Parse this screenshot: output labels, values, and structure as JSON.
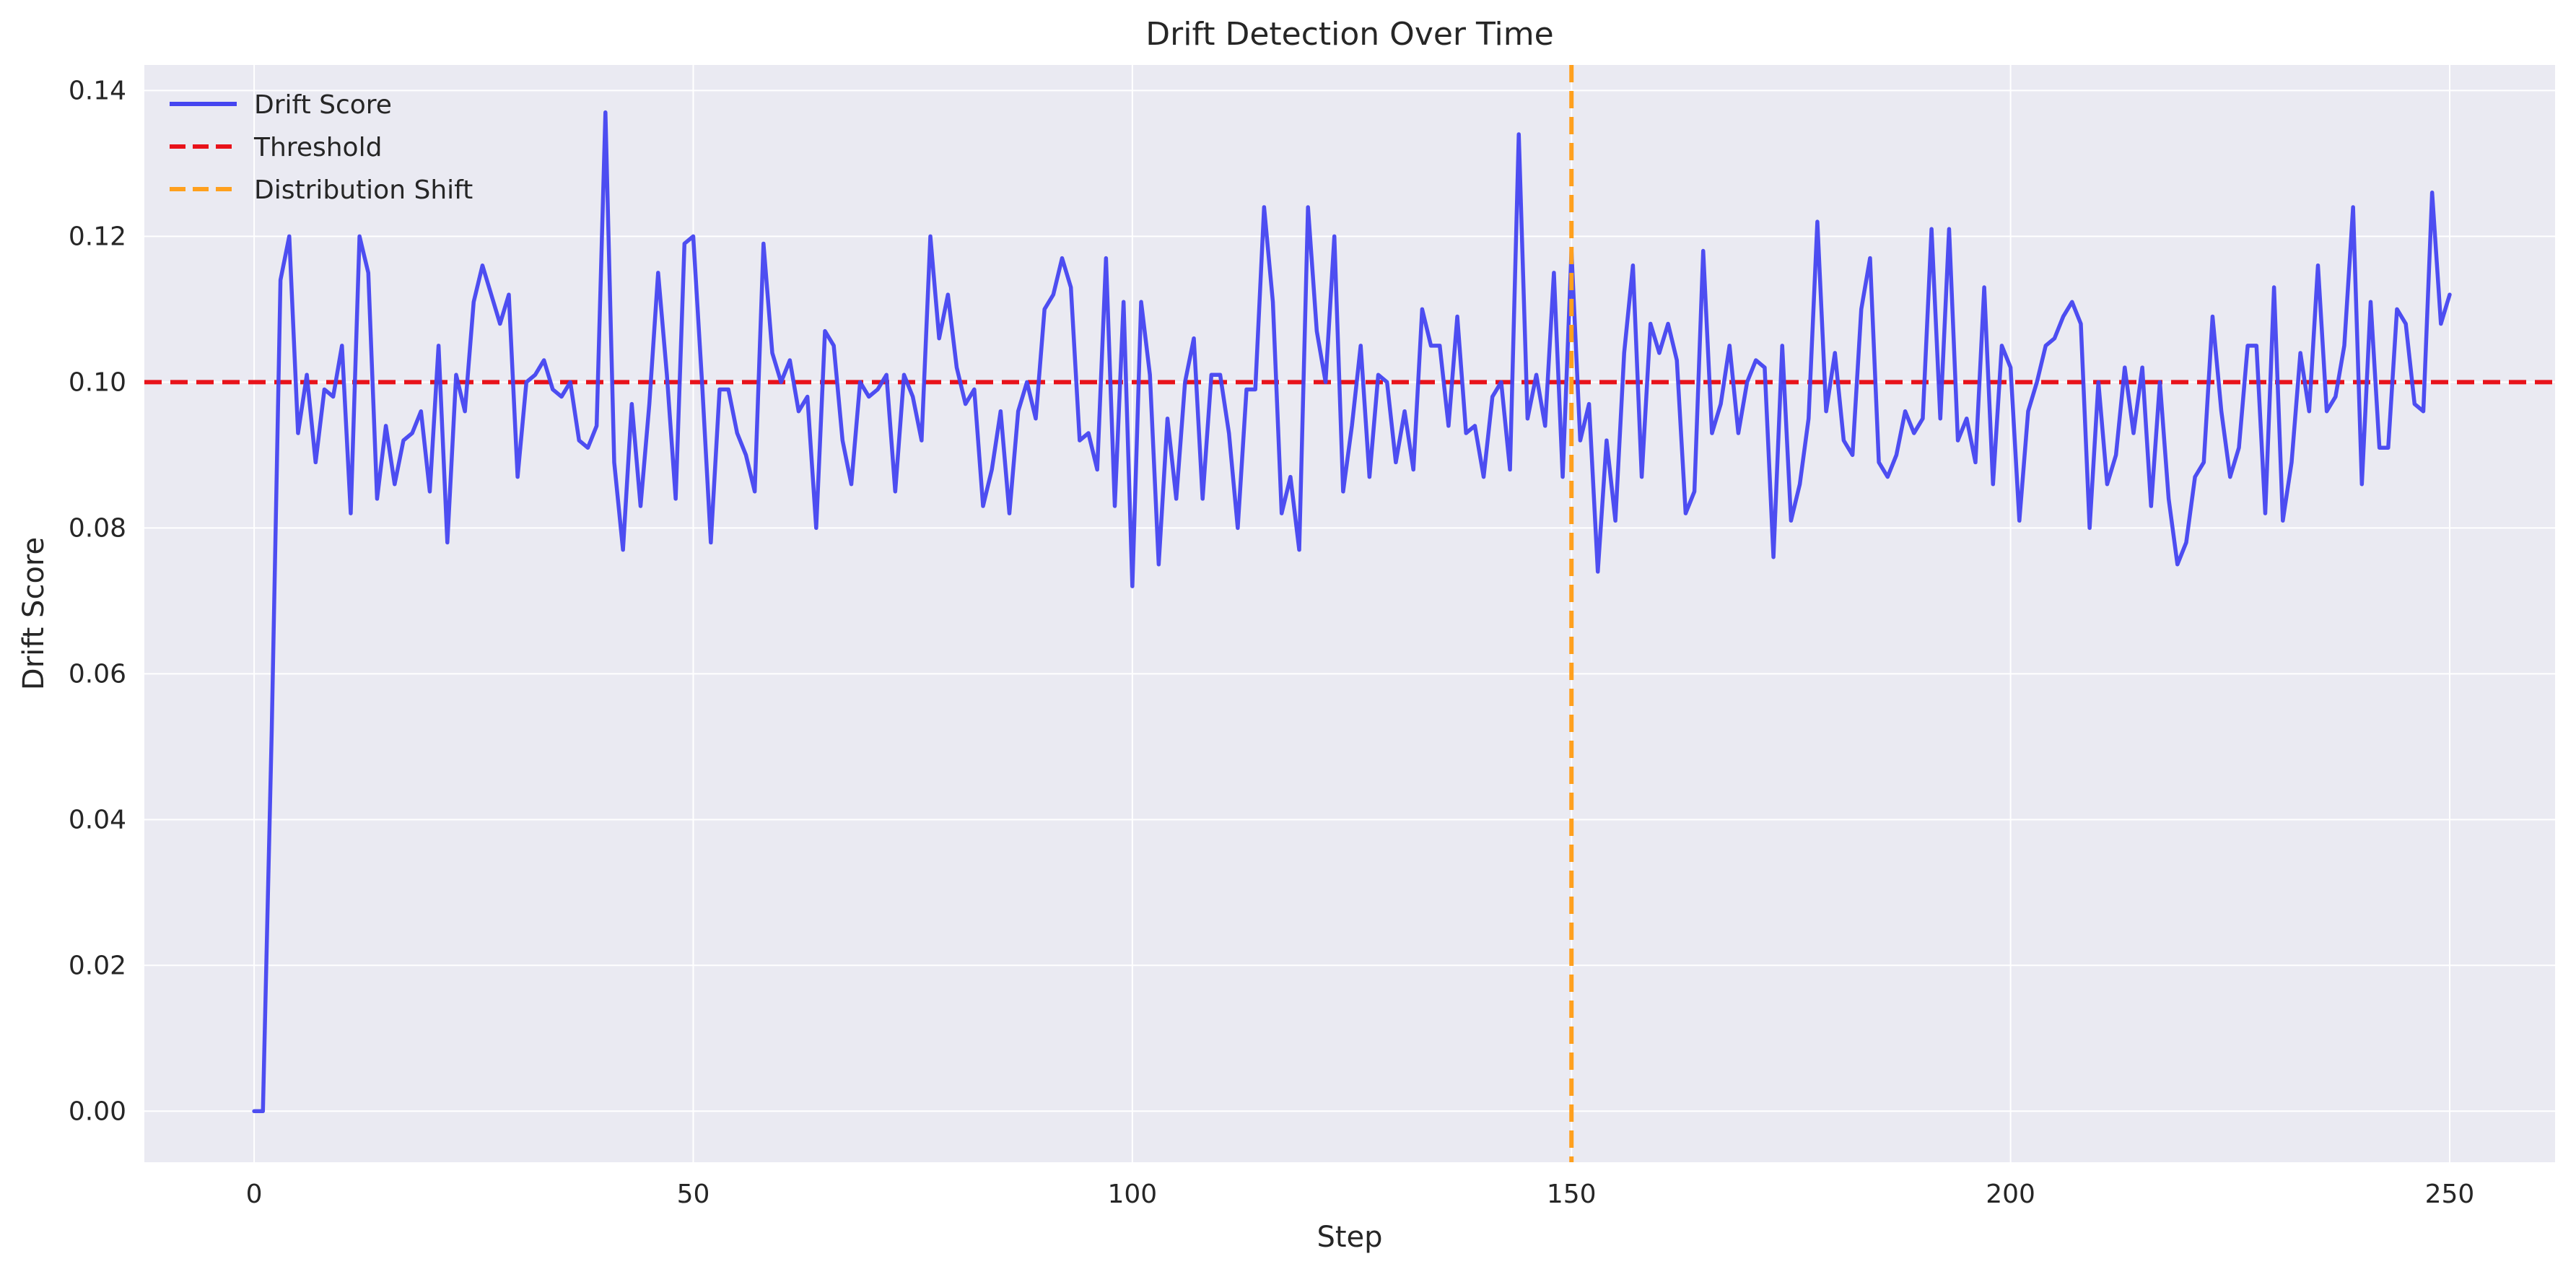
{
  "chart_data": {
    "type": "line",
    "title": "Drift Detection Over Time",
    "xlabel": "Step",
    "ylabel": "Drift Score",
    "xlim": [
      -12.5,
      262
    ],
    "ylim": [
      -0.007,
      0.1435
    ],
    "xticks": [
      0,
      50,
      100,
      150,
      200,
      250
    ],
    "yticks": [
      0.0,
      0.02,
      0.04,
      0.06,
      0.08,
      0.1,
      0.12,
      0.14
    ],
    "ytick_labels": [
      "0.00",
      "0.02",
      "0.04",
      "0.06",
      "0.08",
      "0.10",
      "0.12",
      "0.14"
    ],
    "grid": true,
    "legend_position": "top-left",
    "series": [
      {
        "name": "Drift Score",
        "color": "#4545f0",
        "style": "solid",
        "x_start": 0,
        "x_step": 1,
        "values": [
          0.0,
          0.0,
          0.052,
          0.114,
          0.12,
          0.093,
          0.101,
          0.089,
          0.099,
          0.098,
          0.105,
          0.082,
          0.12,
          0.115,
          0.084,
          0.094,
          0.086,
          0.092,
          0.093,
          0.096,
          0.085,
          0.105,
          0.078,
          0.101,
          0.096,
          0.111,
          0.116,
          0.112,
          0.108,
          0.112,
          0.087,
          0.1,
          0.101,
          0.103,
          0.099,
          0.098,
          0.1,
          0.092,
          0.091,
          0.094,
          0.137,
          0.089,
          0.077,
          0.097,
          0.083,
          0.097,
          0.115,
          0.101,
          0.084,
          0.119,
          0.12,
          0.1,
          0.078,
          0.099,
          0.099,
          0.093,
          0.09,
          0.085,
          0.119,
          0.104,
          0.1,
          0.103,
          0.096,
          0.098,
          0.08,
          0.107,
          0.105,
          0.092,
          0.086,
          0.1,
          0.098,
          0.099,
          0.101,
          0.085,
          0.101,
          0.098,
          0.092,
          0.12,
          0.106,
          0.112,
          0.102,
          0.097,
          0.099,
          0.083,
          0.088,
          0.096,
          0.082,
          0.096,
          0.1,
          0.095,
          0.11,
          0.112,
          0.117,
          0.113,
          0.092,
          0.093,
          0.088,
          0.117,
          0.083,
          0.111,
          0.072,
          0.111,
          0.101,
          0.075,
          0.095,
          0.084,
          0.1,
          0.106,
          0.084,
          0.101,
          0.101,
          0.093,
          0.08,
          0.099,
          0.099,
          0.124,
          0.111,
          0.082,
          0.087,
          0.077,
          0.124,
          0.107,
          0.1,
          0.12,
          0.085,
          0.094,
          0.105,
          0.087,
          0.101,
          0.1,
          0.089,
          0.096,
          0.088,
          0.11,
          0.105,
          0.105,
          0.094,
          0.109,
          0.093,
          0.094,
          0.087,
          0.098,
          0.1,
          0.088,
          0.134,
          0.095,
          0.101,
          0.094,
          0.115,
          0.087,
          0.118,
          0.092,
          0.097,
          0.074,
          0.092,
          0.081,
          0.104,
          0.116,
          0.087,
          0.108,
          0.104,
          0.108,
          0.103,
          0.082,
          0.085,
          0.118,
          0.093,
          0.097,
          0.105,
          0.093,
          0.1,
          0.103,
          0.102,
          0.076,
          0.105,
          0.081,
          0.086,
          0.095,
          0.122,
          0.096,
          0.104,
          0.092,
          0.09,
          0.11,
          0.117,
          0.089,
          0.087,
          0.09,
          0.096,
          0.093,
          0.095,
          0.121,
          0.095,
          0.121,
          0.092,
          0.095,
          0.089,
          0.113,
          0.086,
          0.105,
          0.102,
          0.081,
          0.096,
          0.1,
          0.105,
          0.106,
          0.109,
          0.111,
          0.108,
          0.08,
          0.1,
          0.086,
          0.09,
          0.102,
          0.093,
          0.102,
          0.083,
          0.1,
          0.084,
          0.075,
          0.078,
          0.087,
          0.089,
          0.109,
          0.096,
          0.087,
          0.091,
          0.105,
          0.105,
          0.082,
          0.113,
          0.081,
          0.089,
          0.104,
          0.096,
          0.116,
          0.096,
          0.098,
          0.105,
          0.124,
          0.086,
          0.111,
          0.091,
          0.091,
          0.11,
          0.108,
          0.097,
          0.096,
          0.126,
          0.108,
          0.112
        ]
      },
      {
        "name": "Threshold",
        "color": "#e8121a",
        "style": "dashed",
        "orientation": "horizontal",
        "y": 0.1
      },
      {
        "name": "Distribution Shift",
        "color": "#ffa01e",
        "style": "dashed",
        "orientation": "vertical",
        "x": 150
      }
    ]
  },
  "colors": {
    "plot_background": "#eaeaf2",
    "grid": "#ffffff",
    "text": "#262626"
  }
}
